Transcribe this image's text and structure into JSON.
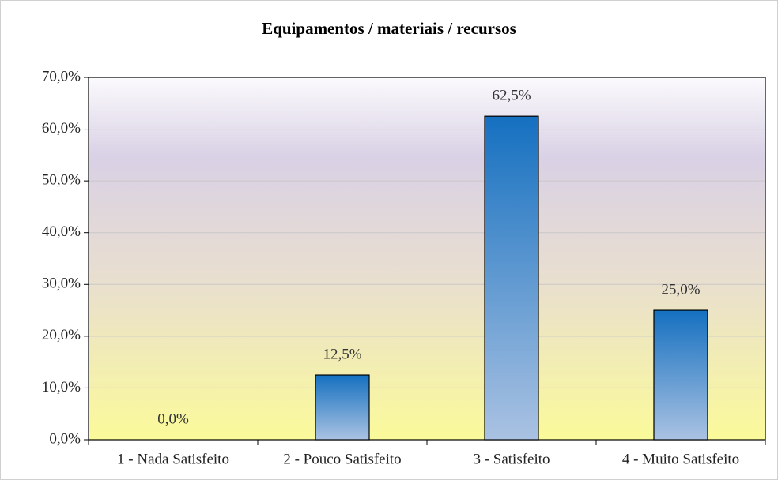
{
  "chart_data": {
    "type": "bar",
    "title": "Equipamentos / materiais / recursos",
    "categories": [
      "1 - Nada Satisfeito",
      "2 - Pouco Satisfeito",
      "3 - Satisfeito",
      "4 - Muito Satisfeito"
    ],
    "values": [
      0,
      12.5,
      62.5,
      25
    ],
    "value_labels": [
      "0,0%",
      "12,5%",
      "62,5%",
      "25,0%"
    ],
    "color": "#1570c0",
    "ylim": [
      0,
      70
    ],
    "yticks": [
      {
        "value": 0,
        "label": "0,0%"
      },
      {
        "value": 10,
        "label": "10,0%"
      },
      {
        "value": 20,
        "label": "20,0%"
      },
      {
        "value": 30,
        "label": "30,0%"
      },
      {
        "value": 40,
        "label": "40,0%"
      },
      {
        "value": 50,
        "label": "50,0%"
      },
      {
        "value": 60,
        "label": "60,0%"
      },
      {
        "value": 70,
        "label": "70,0%"
      }
    ],
    "grid": true
  }
}
